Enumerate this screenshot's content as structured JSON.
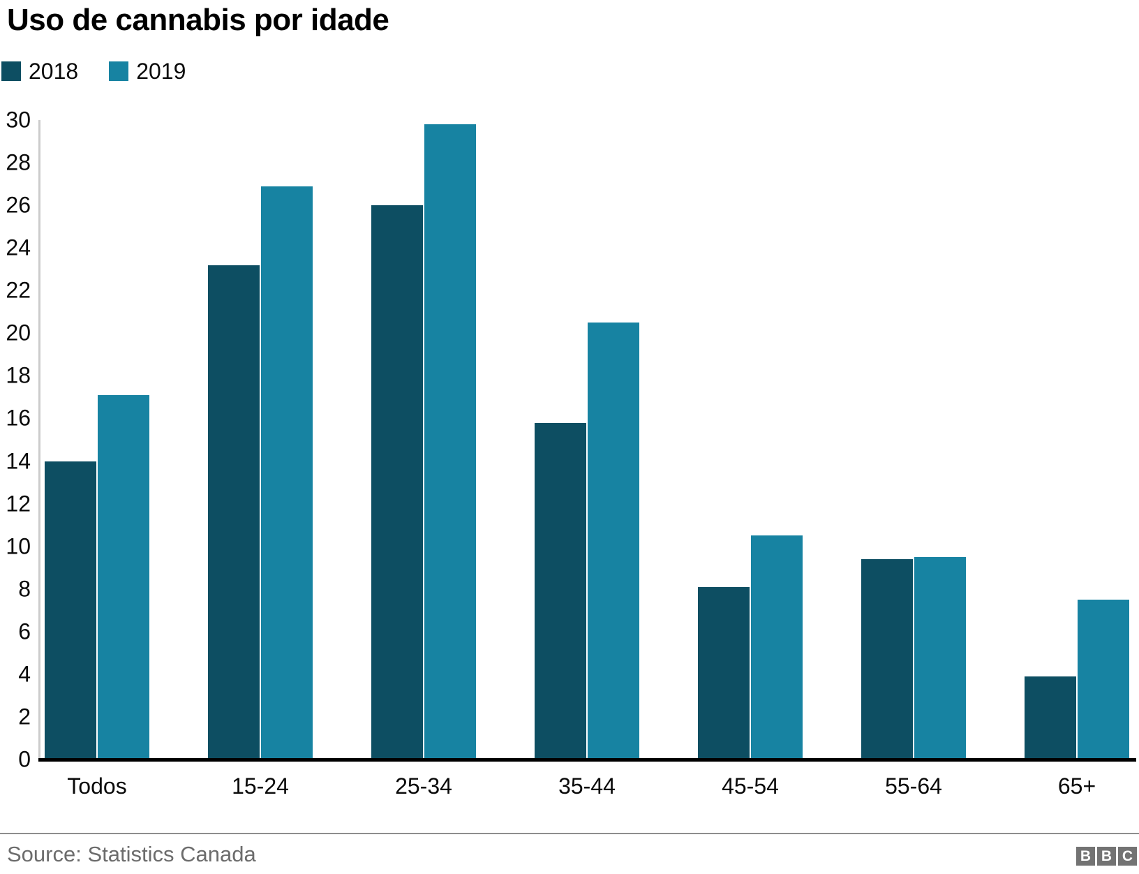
{
  "title": "Uso de cannabis por idade",
  "chart_data": {
    "type": "bar",
    "title": "Uso de cannabis por idade",
    "categories": [
      "Todos",
      "15-24",
      "25-34",
      "35-44",
      "45-54",
      "55-64",
      "65+"
    ],
    "series": [
      {
        "name": "2018",
        "color": "#0d4e62",
        "values": [
          14.0,
          23.2,
          26.0,
          15.8,
          8.1,
          9.4,
          3.9
        ]
      },
      {
        "name": "2019",
        "color": "#1783a2",
        "values": [
          17.1,
          26.9,
          29.8,
          20.5,
          10.5,
          9.5,
          7.5
        ]
      }
    ],
    "xlabel": "",
    "ylabel": "",
    "ylim": [
      0,
      30
    ],
    "yticks": [
      0,
      2,
      4,
      6,
      8,
      10,
      12,
      14,
      16,
      18,
      20,
      22,
      24,
      26,
      28,
      30
    ],
    "grid": false,
    "legend_position": "top-left",
    "unit": "percent"
  },
  "footer": {
    "source": "Source: Statistics Canada",
    "logo_letters": [
      "B",
      "B",
      "C"
    ]
  },
  "colors": {
    "series_2018": "#0d4e62",
    "series_2019": "#1783a2",
    "axis_line": "#cccccc",
    "baseline": "#000000",
    "divider": "#8d8d8d",
    "source_text": "#6c6c6c",
    "logo_gray": "#737373"
  }
}
